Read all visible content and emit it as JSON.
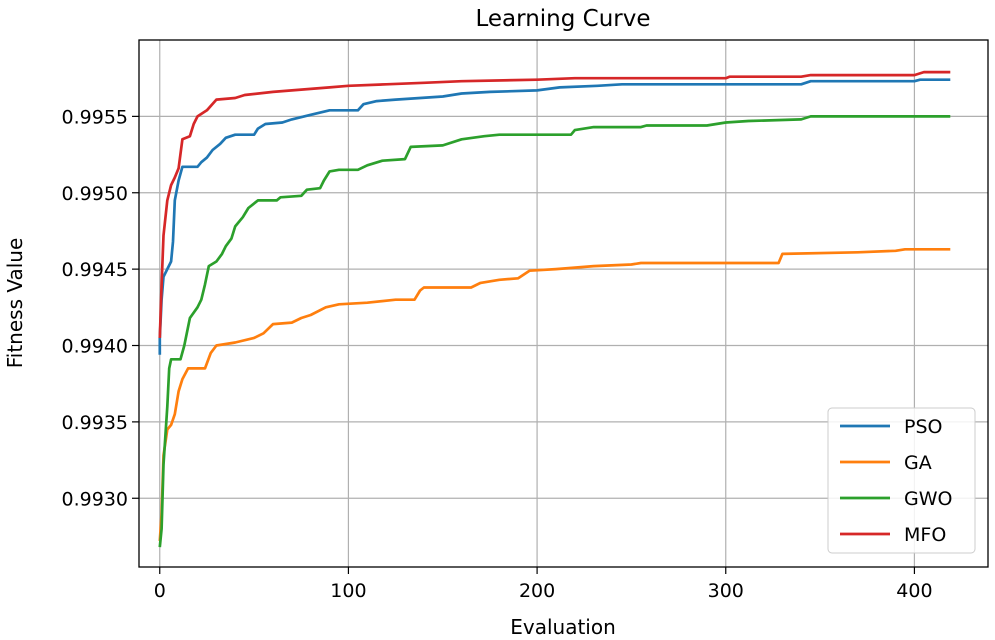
{
  "chart_data": {
    "type": "line",
    "title": "Learning Curve",
    "xlabel": "Evaluation",
    "ylabel": "Fitness Value",
    "xlim": [
      -11,
      439
    ],
    "ylim": [
      0.99255,
      0.996
    ],
    "xticks": [
      0,
      100,
      200,
      300,
      400
    ],
    "yticks": [
      0.993,
      0.9935,
      0.994,
      0.9945,
      0.995,
      0.9955
    ],
    "ytick_labels": [
      "0.9930",
      "0.9935",
      "0.9940",
      "0.9945",
      "0.9950",
      "0.9955"
    ],
    "grid": true,
    "legend_position": "lower-right",
    "series": [
      {
        "name": "PSO",
        "color": "#1f77b4",
        "points": [
          [
            0,
            0.99394
          ],
          [
            0,
            0.99405
          ],
          [
            1,
            0.9943
          ],
          [
            2,
            0.99445
          ],
          [
            4,
            0.9945
          ],
          [
            6,
            0.99455
          ],
          [
            7,
            0.99468
          ],
          [
            8,
            0.99495
          ],
          [
            10,
            0.99508
          ],
          [
            12,
            0.99517
          ],
          [
            20,
            0.99517
          ],
          [
            22,
            0.9952
          ],
          [
            25,
            0.99523
          ],
          [
            28,
            0.99528
          ],
          [
            32,
            0.99532
          ],
          [
            35,
            0.99536
          ],
          [
            40,
            0.99538
          ],
          [
            50,
            0.99538
          ],
          [
            52,
            0.99542
          ],
          [
            56,
            0.99545
          ],
          [
            65,
            0.99546
          ],
          [
            70,
            0.99548
          ],
          [
            80,
            0.99551
          ],
          [
            90,
            0.99554
          ],
          [
            105,
            0.99554
          ],
          [
            108,
            0.99558
          ],
          [
            115,
            0.9956
          ],
          [
            125,
            0.99561
          ],
          [
            150,
            0.99563
          ],
          [
            160,
            0.99565
          ],
          [
            175,
            0.99566
          ],
          [
            200,
            0.99567
          ],
          [
            212,
            0.99569
          ],
          [
            232,
            0.9957
          ],
          [
            245,
            0.99571
          ],
          [
            340,
            0.99571
          ],
          [
            345,
            0.99573
          ],
          [
            400,
            0.99573
          ],
          [
            403,
            0.99574
          ],
          [
            419,
            0.99574
          ]
        ]
      },
      {
        "name": "GA",
        "color": "#ff7f0e",
        "points": [
          [
            0,
            0.99272
          ],
          [
            1,
            0.9929
          ],
          [
            2,
            0.99328
          ],
          [
            4,
            0.99345
          ],
          [
            6,
            0.99348
          ],
          [
            8,
            0.99355
          ],
          [
            10,
            0.9937
          ],
          [
            12,
            0.99378
          ],
          [
            15,
            0.99385
          ],
          [
            24,
            0.99385
          ],
          [
            27,
            0.99395
          ],
          [
            30,
            0.994
          ],
          [
            40,
            0.99402
          ],
          [
            50,
            0.99405
          ],
          [
            55,
            0.99408
          ],
          [
            60,
            0.99414
          ],
          [
            70,
            0.99415
          ],
          [
            75,
            0.99418
          ],
          [
            80,
            0.9942
          ],
          [
            88,
            0.99425
          ],
          [
            95,
            0.99427
          ],
          [
            110,
            0.99428
          ],
          [
            125,
            0.9943
          ],
          [
            135,
            0.9943
          ],
          [
            138,
            0.99436
          ],
          [
            140,
            0.99438
          ],
          [
            165,
            0.99438
          ],
          [
            170,
            0.99441
          ],
          [
            180,
            0.99443
          ],
          [
            190,
            0.99444
          ],
          [
            196,
            0.99449
          ],
          [
            210,
            0.9945
          ],
          [
            230,
            0.99452
          ],
          [
            250,
            0.99453
          ],
          [
            255,
            0.99454
          ],
          [
            328,
            0.99454
          ],
          [
            330,
            0.9946
          ],
          [
            370,
            0.99461
          ],
          [
            390,
            0.99462
          ],
          [
            395,
            0.99463
          ],
          [
            419,
            0.99463
          ]
        ]
      },
      {
        "name": "GWO",
        "color": "#2ca02c",
        "points": [
          [
            0,
            0.99268
          ],
          [
            1,
            0.9928
          ],
          [
            2,
            0.99322
          ],
          [
            4,
            0.9936
          ],
          [
            5,
            0.99385
          ],
          [
            6,
            0.99391
          ],
          [
            11,
            0.99391
          ],
          [
            13,
            0.994
          ],
          [
            16,
            0.99418
          ],
          [
            20,
            0.99425
          ],
          [
            22,
            0.9943
          ],
          [
            24,
            0.9944
          ],
          [
            26,
            0.99452
          ],
          [
            30,
            0.99455
          ],
          [
            33,
            0.9946
          ],
          [
            35,
            0.99465
          ],
          [
            38,
            0.9947
          ],
          [
            40,
            0.99478
          ],
          [
            44,
            0.99484
          ],
          [
            47,
            0.9949
          ],
          [
            52,
            0.99495
          ],
          [
            62,
            0.99495
          ],
          [
            64,
            0.99497
          ],
          [
            75,
            0.99498
          ],
          [
            78,
            0.99502
          ],
          [
            85,
            0.99503
          ],
          [
            87,
            0.99508
          ],
          [
            90,
            0.99514
          ],
          [
            95,
            0.99515
          ],
          [
            105,
            0.99515
          ],
          [
            110,
            0.99518
          ],
          [
            118,
            0.99521
          ],
          [
            130,
            0.99522
          ],
          [
            133,
            0.9953
          ],
          [
            150,
            0.99531
          ],
          [
            160,
            0.99535
          ],
          [
            172,
            0.99537
          ],
          [
            180,
            0.99538
          ],
          [
            218,
            0.99538
          ],
          [
            220,
            0.99541
          ],
          [
            230,
            0.99543
          ],
          [
            255,
            0.99543
          ],
          [
            258,
            0.99544
          ],
          [
            290,
            0.99544
          ],
          [
            300,
            0.99546
          ],
          [
            312,
            0.99547
          ],
          [
            340,
            0.99548
          ],
          [
            345,
            0.9955
          ],
          [
            419,
            0.9955
          ]
        ]
      },
      {
        "name": "MFO",
        "color": "#d62728",
        "points": [
          [
            0,
            0.99405
          ],
          [
            1,
            0.9944
          ],
          [
            2,
            0.99472
          ],
          [
            4,
            0.99495
          ],
          [
            6,
            0.99505
          ],
          [
            8,
            0.9951
          ],
          [
            10,
            0.99516
          ],
          [
            12,
            0.99535
          ],
          [
            16,
            0.99537
          ],
          [
            18,
            0.99545
          ],
          [
            20,
            0.9955
          ],
          [
            25,
            0.99554
          ],
          [
            30,
            0.99561
          ],
          [
            40,
            0.99562
          ],
          [
            45,
            0.99564
          ],
          [
            60,
            0.99566
          ],
          [
            80,
            0.99568
          ],
          [
            90,
            0.99569
          ],
          [
            100,
            0.9957
          ],
          [
            120,
            0.99571
          ],
          [
            140,
            0.99572
          ],
          [
            160,
            0.99573
          ],
          [
            200,
            0.99574
          ],
          [
            220,
            0.99575
          ],
          [
            300,
            0.99575
          ],
          [
            302,
            0.99576
          ],
          [
            340,
            0.99576
          ],
          [
            345,
            0.99577
          ],
          [
            400,
            0.99577
          ],
          [
            405,
            0.99579
          ],
          [
            419,
            0.99579
          ]
        ]
      }
    ]
  }
}
